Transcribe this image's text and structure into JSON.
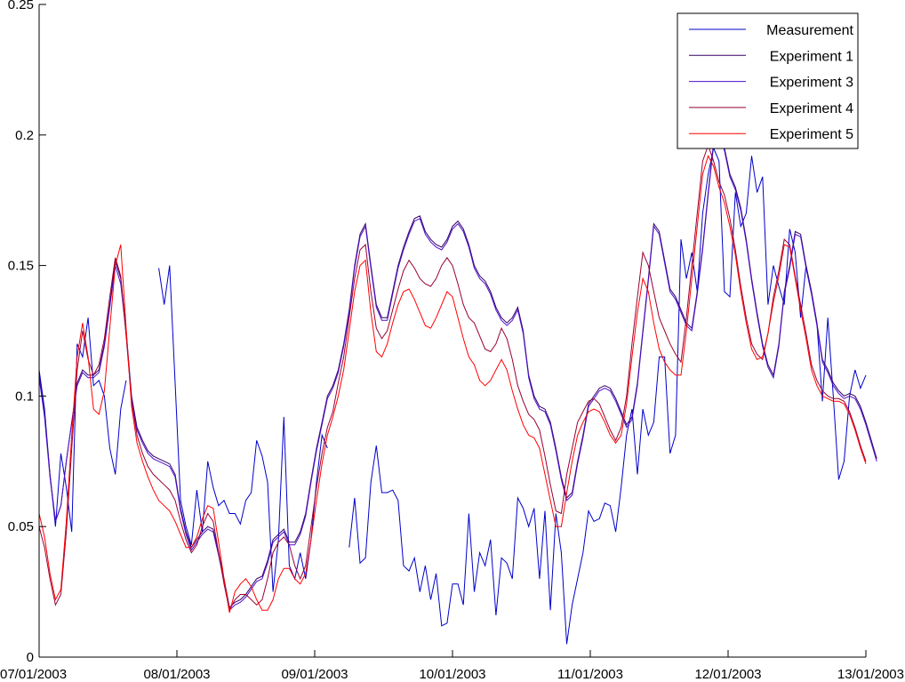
{
  "chart_data": {
    "type": "line",
    "title": "",
    "xlabel": "",
    "ylabel": "",
    "xlim": [
      "07/01/2003",
      "13/01/2003"
    ],
    "ylim": [
      0,
      0.25
    ],
    "x_ticks": [
      "07/01/2003",
      "08/01/2003",
      "09/01/2003",
      "10/01/2003",
      "11/01/2003",
      "12/01/2003",
      "13/01/2003"
    ],
    "y_ticks": [
      "0",
      "0.05",
      "0.1",
      "0.15",
      "0.2",
      "0.25"
    ],
    "grid": false,
    "legend_position": "top-right",
    "sample_interval_hours": 1,
    "series": [
      {
        "name": "Measurement",
        "color": "#0000cc",
        "values": [
          0.11,
          0.095,
          0.07,
          0.05,
          0.078,
          0.065,
          0.048,
          0.12,
          0.115,
          0.13,
          0.104,
          0.106,
          0.1,
          0.08,
          0.07,
          0.095,
          0.106,
          null,
          null,
          null,
          null,
          null,
          0.149,
          0.135,
          0.15,
          0.105,
          0.06,
          0.05,
          0.043,
          0.064,
          0.048,
          0.075,
          0.065,
          0.058,
          0.06,
          0.055,
          0.055,
          0.051,
          0.06,
          0.063,
          0.083,
          0.077,
          0.067,
          0.025,
          0.045,
          0.092,
          0.035,
          0.03,
          0.04,
          0.03,
          0.045,
          0.067,
          0.085,
          0.08,
          null,
          null,
          null,
          0.042,
          0.061,
          0.036,
          0.038,
          0.067,
          0.081,
          0.063,
          0.063,
          0.064,
          0.06,
          0.035,
          0.033,
          0.038,
          0.025,
          0.035,
          0.022,
          0.032,
          0.012,
          0.013,
          0.028,
          0.028,
          0.02,
          0.055,
          0.025,
          0.04,
          0.035,
          0.045,
          0.016,
          0.038,
          0.036,
          0.03,
          0.061,
          0.057,
          0.05,
          0.057,
          0.03,
          0.056,
          0.018,
          0.055,
          0.04,
          0.005,
          0.02,
          0.03,
          0.04,
          0.056,
          0.052,
          0.053,
          0.059,
          0.058,
          0.048,
          0.065,
          0.085,
          0.095,
          0.07,
          0.095,
          0.085,
          0.09,
          0.115,
          0.115,
          0.078,
          0.085,
          0.16,
          0.145,
          0.155,
          0.14,
          0.17,
          0.185,
          0.195,
          0.19,
          0.14,
          0.138,
          0.178,
          0.165,
          0.17,
          0.192,
          0.178,
          0.184,
          0.135,
          0.15,
          0.142,
          0.135,
          0.164,
          0.155,
          0.13,
          0.15,
          0.14,
          0.128,
          0.098,
          0.13,
          0.1,
          0.068,
          0.075,
          0.1,
          0.11,
          0.103,
          0.108
        ]
      },
      {
        "name": "Experiment 1",
        "color": "#330066",
        "values": [
          0.108,
          0.093,
          0.07,
          0.052,
          0.058,
          0.075,
          0.09,
          0.105,
          0.11,
          0.108,
          0.108,
          0.11,
          0.12,
          0.135,
          0.152,
          0.145,
          0.125,
          0.1,
          0.088,
          0.083,
          0.079,
          0.077,
          0.076,
          0.075,
          0.074,
          0.07,
          0.057,
          0.048,
          0.042,
          0.045,
          0.048,
          0.05,
          0.049,
          0.04,
          0.03,
          0.019,
          0.021,
          0.022,
          0.024,
          0.027,
          0.03,
          0.031,
          0.037,
          0.045,
          0.047,
          0.049,
          0.044,
          0.044,
          0.048,
          0.055,
          0.068,
          0.08,
          0.09,
          0.1,
          0.104,
          0.11,
          0.12,
          0.133,
          0.15,
          0.162,
          0.166,
          0.15,
          0.135,
          0.13,
          0.13,
          0.14,
          0.15,
          0.157,
          0.163,
          0.168,
          0.169,
          0.163,
          0.16,
          0.158,
          0.157,
          0.16,
          0.165,
          0.167,
          0.164,
          0.158,
          0.15,
          0.146,
          0.144,
          0.14,
          0.134,
          0.13,
          0.128,
          0.13,
          0.134,
          0.125,
          0.108,
          0.1,
          0.096,
          0.095,
          0.09,
          0.08,
          0.069,
          0.061,
          0.063,
          0.075,
          0.085,
          0.097,
          0.1,
          0.103,
          0.104,
          0.103,
          0.099,
          0.094,
          0.089,
          0.092,
          0.105,
          0.125,
          0.145,
          0.166,
          0.163,
          0.152,
          0.141,
          0.138,
          0.133,
          0.128,
          0.126,
          0.14,
          0.157,
          0.178,
          0.197,
          0.202,
          0.195,
          0.185,
          0.18,
          0.172,
          0.16,
          0.145,
          0.132,
          0.12,
          0.112,
          0.108,
          0.12,
          0.14,
          0.15,
          0.163,
          0.162,
          0.15,
          0.14,
          0.128,
          0.114,
          0.11,
          0.105,
          0.102,
          0.1,
          0.101,
          0.1,
          0.096,
          0.09,
          0.083,
          0.076
        ]
      },
      {
        "name": "Experiment 3",
        "color": "#4b0fcc",
        "values": [
          0.107,
          0.092,
          0.069,
          0.052,
          0.058,
          0.075,
          0.09,
          0.104,
          0.109,
          0.107,
          0.107,
          0.109,
          0.119,
          0.134,
          0.15,
          0.143,
          0.124,
          0.099,
          0.087,
          0.082,
          0.078,
          0.076,
          0.075,
          0.074,
          0.073,
          0.069,
          0.056,
          0.047,
          0.041,
          0.044,
          0.047,
          0.049,
          0.048,
          0.039,
          0.029,
          0.018,
          0.02,
          0.021,
          0.023,
          0.026,
          0.029,
          0.03,
          0.036,
          0.044,
          0.046,
          0.048,
          0.043,
          0.043,
          0.047,
          0.054,
          0.067,
          0.079,
          0.089,
          0.099,
          0.103,
          0.109,
          0.119,
          0.132,
          0.149,
          0.161,
          0.165,
          0.149,
          0.134,
          0.129,
          0.129,
          0.139,
          0.149,
          0.156,
          0.162,
          0.167,
          0.168,
          0.162,
          0.159,
          0.157,
          0.156,
          0.159,
          0.164,
          0.166,
          0.163,
          0.157,
          0.149,
          0.145,
          0.143,
          0.139,
          0.133,
          0.129,
          0.127,
          0.129,
          0.133,
          0.124,
          0.107,
          0.099,
          0.095,
          0.094,
          0.089,
          0.079,
          0.068,
          0.06,
          0.062,
          0.074,
          0.084,
          0.096,
          0.099,
          0.102,
          0.103,
          0.102,
          0.098,
          0.093,
          0.088,
          0.091,
          0.104,
          0.124,
          0.144,
          0.165,
          0.162,
          0.151,
          0.14,
          0.137,
          0.132,
          0.127,
          0.125,
          0.139,
          0.156,
          0.177,
          0.196,
          0.201,
          0.194,
          0.184,
          0.179,
          0.171,
          0.159,
          0.144,
          0.131,
          0.119,
          0.111,
          0.107,
          0.119,
          0.139,
          0.149,
          0.162,
          0.161,
          0.149,
          0.139,
          0.127,
          0.113,
          0.109,
          0.104,
          0.101,
          0.099,
          0.1,
          0.099,
          0.095,
          0.089,
          0.082,
          0.075
        ]
      },
      {
        "name": "Experiment 4",
        "color": "#990033",
        "values": [
          0.05,
          0.042,
          0.03,
          0.02,
          0.024,
          0.048,
          0.08,
          0.11,
          0.125,
          0.114,
          0.108,
          0.112,
          0.122,
          0.138,
          0.153,
          0.146,
          0.123,
          0.098,
          0.085,
          0.078,
          0.073,
          0.07,
          0.068,
          0.066,
          0.064,
          0.06,
          0.052,
          0.045,
          0.04,
          0.043,
          0.05,
          0.055,
          0.052,
          0.04,
          0.028,
          0.018,
          0.022,
          0.024,
          0.024,
          0.022,
          0.02,
          0.022,
          0.03,
          0.04,
          0.044,
          0.046,
          0.043,
          0.035,
          0.03,
          0.035,
          0.05,
          0.065,
          0.078,
          0.088,
          0.094,
          0.105,
          0.115,
          0.13,
          0.145,
          0.156,
          0.158,
          0.14,
          0.126,
          0.122,
          0.125,
          0.133,
          0.141,
          0.148,
          0.152,
          0.149,
          0.145,
          0.143,
          0.142,
          0.145,
          0.15,
          0.153,
          0.15,
          0.143,
          0.135,
          0.13,
          0.128,
          0.123,
          0.118,
          0.117,
          0.12,
          0.126,
          0.122,
          0.114,
          0.104,
          0.098,
          0.093,
          0.091,
          0.087,
          0.077,
          0.066,
          0.056,
          0.055,
          0.07,
          0.08,
          0.09,
          0.094,
          0.098,
          0.099,
          0.097,
          0.092,
          0.087,
          0.083,
          0.088,
          0.1,
          0.12,
          0.138,
          0.155,
          0.15,
          0.14,
          0.13,
          0.125,
          0.12,
          0.116,
          0.113,
          0.13,
          0.15,
          0.17,
          0.19,
          0.196,
          0.19,
          0.182,
          0.177,
          0.168,
          0.156,
          0.142,
          0.13,
          0.12,
          0.116,
          0.114,
          0.124,
          0.138,
          0.148,
          0.16,
          0.158,
          0.146,
          0.135,
          0.124,
          0.112,
          0.106,
          0.102,
          0.1,
          0.099,
          0.099,
          0.098,
          0.094,
          0.088,
          0.081,
          0.075
        ]
      },
      {
        "name": "Experiment 5",
        "color": "#ff0000",
        "values": [
          0.055,
          0.046,
          0.032,
          0.022,
          0.026,
          0.052,
          0.085,
          0.115,
          0.128,
          0.115,
          0.095,
          0.093,
          0.102,
          0.126,
          0.15,
          0.158,
          0.126,
          0.096,
          0.082,
          0.075,
          0.069,
          0.064,
          0.06,
          0.058,
          0.056,
          0.052,
          0.047,
          0.042,
          0.042,
          0.046,
          0.053,
          0.058,
          0.057,
          0.044,
          0.03,
          0.017,
          0.025,
          0.028,
          0.03,
          0.027,
          0.022,
          0.018,
          0.018,
          0.022,
          0.03,
          0.034,
          0.034,
          0.03,
          0.028,
          0.032,
          0.045,
          0.06,
          0.074,
          0.085,
          0.092,
          0.1,
          0.11,
          0.125,
          0.14,
          0.15,
          0.152,
          0.132,
          0.117,
          0.115,
          0.12,
          0.128,
          0.135,
          0.14,
          0.141,
          0.137,
          0.132,
          0.127,
          0.126,
          0.13,
          0.135,
          0.14,
          0.138,
          0.13,
          0.122,
          0.115,
          0.112,
          0.106,
          0.104,
          0.106,
          0.11,
          0.114,
          0.11,
          0.102,
          0.095,
          0.089,
          0.085,
          0.084,
          0.08,
          0.07,
          0.06,
          0.05,
          0.05,
          0.063,
          0.075,
          0.085,
          0.09,
          0.094,
          0.095,
          0.094,
          0.09,
          0.085,
          0.082,
          0.085,
          0.097,
          0.115,
          0.132,
          0.145,
          0.14,
          0.128,
          0.118,
          0.113,
          0.11,
          0.108,
          0.108,
          0.125,
          0.145,
          0.165,
          0.185,
          0.192,
          0.188,
          0.18,
          0.174,
          0.165,
          0.154,
          0.14,
          0.128,
          0.118,
          0.114,
          0.115,
          0.124,
          0.136,
          0.146,
          0.158,
          0.157,
          0.145,
          0.133,
          0.122,
          0.11,
          0.104,
          0.1,
          0.099,
          0.098,
          0.098,
          0.097,
          0.093,
          0.087,
          0.08,
          0.074
        ]
      }
    ]
  }
}
